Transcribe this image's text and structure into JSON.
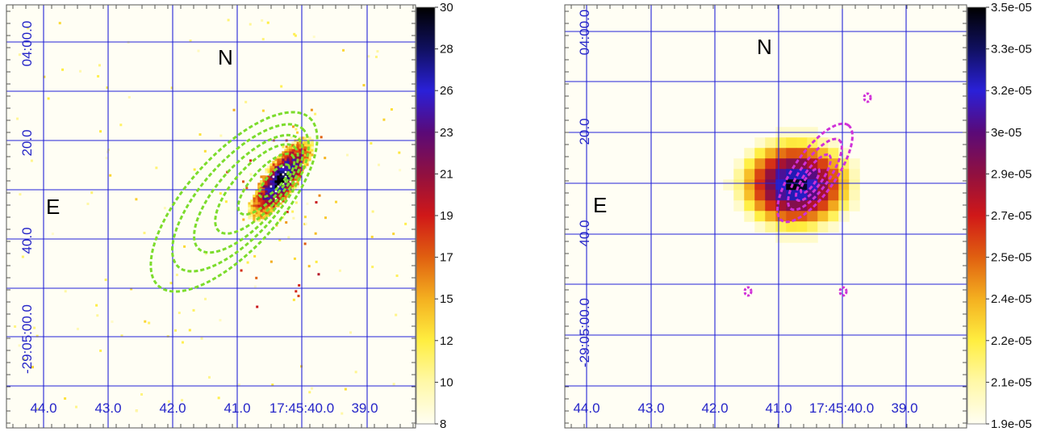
{
  "chart_data": [
    {
      "type": "heatmap",
      "panel": "left",
      "title": "",
      "xlabel": "",
      "ylabel": "",
      "ra_tick_labels": [
        "44.0",
        "43.0",
        "42.0",
        "41.0",
        "17:45:40.0",
        "39.0"
      ],
      "dec_tick_labels": [
        "04:00.0",
        "20.0",
        "40.0",
        "-29:05:00.0"
      ],
      "compass": {
        "north": "N",
        "east": "E"
      },
      "colorbar": {
        "min": 8,
        "max": 30,
        "tick_labels": [
          "30",
          "28",
          "26",
          "23",
          "21",
          "19",
          "17",
          "15",
          "12",
          "10",
          "8"
        ],
        "colormap": [
          "#fffef2",
          "#fff8a8",
          "#ffee40",
          "#f4b020",
          "#e06010",
          "#d01818",
          "#901040",
          "#5a0a78",
          "#2a20d8",
          "#101060",
          "#000000"
        ]
      },
      "contour_color": "#7cdc2c",
      "contour_style": "dashed",
      "emission": "elongated bright source oriented from lower-left to upper-right, peak near RA 17:45:40.3, Dec -29:04:30",
      "contours": "green dashed nested ellipses (~6 levels) centred near RA 17:45:41, Dec -29:04:33"
    },
    {
      "type": "heatmap",
      "panel": "right",
      "title": "",
      "xlabel": "",
      "ylabel": "",
      "ra_tick_labels": [
        "44.0",
        "43.0",
        "42.0",
        "41.0",
        "17:45:40.0",
        "39.0"
      ],
      "dec_tick_labels": [
        "04:00.0",
        "20.0",
        "40.0",
        "-29:05:00.0"
      ],
      "compass": {
        "north": "N",
        "east": "E"
      },
      "colorbar": {
        "min": "1.9e-05",
        "max": "3.5e-05",
        "tick_labels": [
          "3.5e-05",
          "3.3e-05",
          "3.2e-05",
          "3e-05",
          "2.9e-05",
          "2.7e-05",
          "2.5e-05",
          "2.4e-05",
          "2.2e-05",
          "2.1e-05",
          "1.9e-05"
        ],
        "colormap": [
          "#fffef2",
          "#fff8a8",
          "#ffee40",
          "#f4b020",
          "#e06010",
          "#d01818",
          "#901040",
          "#5a0a78",
          "#2a20d8",
          "#101060",
          "#000000"
        ]
      },
      "contour_color": "#d030d8",
      "contour_style": "dashed",
      "emission": "compact blob centred near RA 17:45:40.6, Dec -29:04:32",
      "contours": "magenta dashed contours elongated toward upper-right, plus small islands"
    }
  ]
}
